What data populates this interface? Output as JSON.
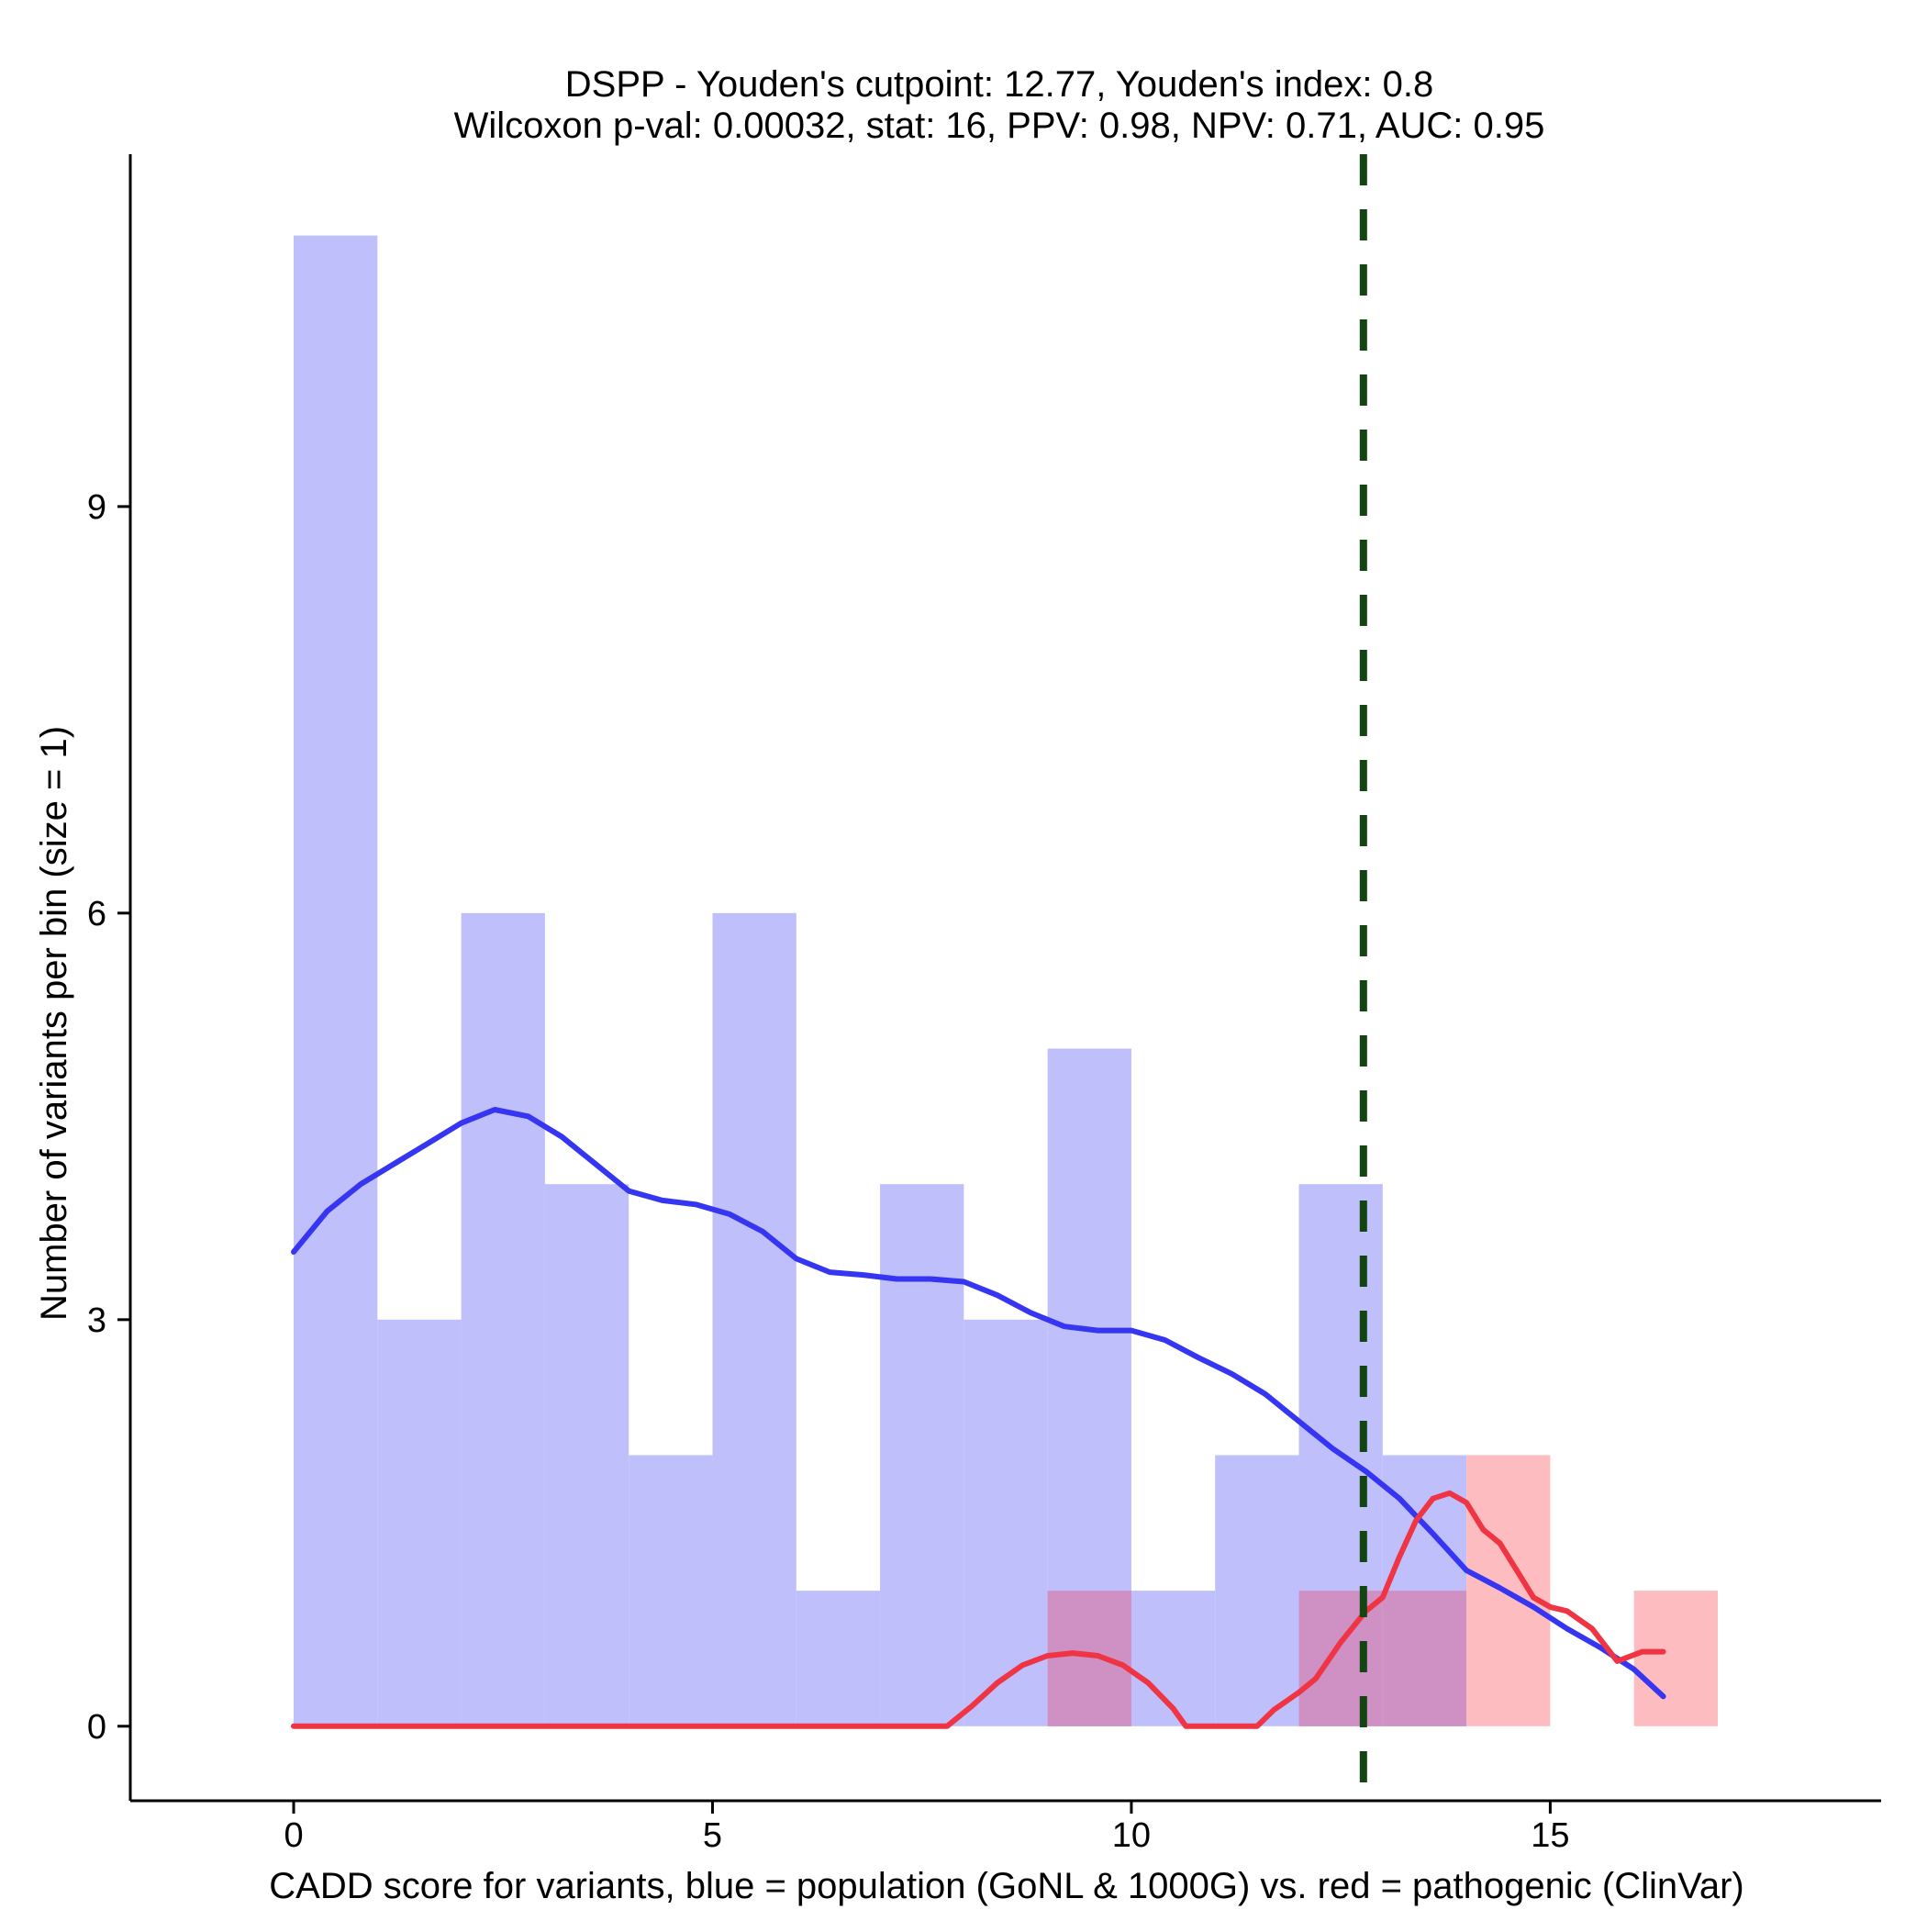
{
  "chart_data": {
    "type": "bar",
    "title_line1": "DSPP - Youden's cutpoint: 12.77, Youden's index: 0.8",
    "title_line2": "Wilcoxon p-val: 0.00032, stat: 16, PPV: 0.98, NPV: 0.71, AUC: 0.95",
    "xlabel": "CADD score for variants, blue = population (GoNL & 1000G) vs. red = pathogenic (ClinVar)",
    "ylabel": "Number of variants per bin (size = 1)",
    "xlim": [
      -1.95,
      18.95
    ],
    "ylim": [
      -0.55,
      11.6
    ],
    "x_ticks": [
      0,
      5,
      10,
      15
    ],
    "y_ticks": [
      0,
      3,
      6,
      9
    ],
    "bin_width": 1,
    "cutpoint": 12.77,
    "colors": {
      "population_bar": "#bfbffb",
      "pathogenic_bar": "#fdbcbf",
      "overlap_bar": "#cf90c4",
      "population_line": "#3535f2",
      "pathogenic_line": "#ef3444",
      "cutpoint_line": "#124512"
    },
    "series": [
      {
        "name": "population",
        "bin_starts": [
          0,
          1,
          2,
          3,
          4,
          5,
          6,
          7,
          8,
          9,
          10,
          11,
          12,
          13
        ],
        "values": [
          11,
          3,
          6,
          4,
          2,
          6,
          1,
          4,
          3,
          5,
          1,
          2,
          4,
          2
        ]
      },
      {
        "name": "pathogenic",
        "bin_starts": [
          9,
          12,
          13,
          14,
          16
        ],
        "values": [
          1,
          1,
          1,
          2,
          1
        ]
      }
    ],
    "density_population": {
      "x": [
        0,
        0.4,
        0.8,
        1.2,
        1.6,
        2.0,
        2.4,
        2.8,
        3.2,
        3.6,
        4.0,
        4.4,
        4.8,
        5.2,
        5.6,
        6.0,
        6.4,
        6.8,
        7.2,
        7.6,
        8.0,
        8.4,
        8.8,
        9.2,
        9.6,
        10.0,
        10.4,
        10.8,
        11.2,
        11.6,
        12.0,
        12.4,
        12.8,
        13.2,
        13.6,
        14.0,
        14.4,
        14.8,
        15.2,
        15.6,
        16.0,
        16.35
      ],
      "y": [
        3.5,
        3.8,
        4.0,
        4.15,
        4.3,
        4.45,
        4.55,
        4.5,
        4.35,
        4.15,
        3.95,
        3.88,
        3.85,
        3.78,
        3.65,
        3.45,
        3.35,
        3.33,
        3.3,
        3.3,
        3.28,
        3.18,
        3.05,
        2.95,
        2.92,
        2.92,
        2.85,
        2.72,
        2.6,
        2.45,
        2.25,
        2.05,
        1.88,
        1.68,
        1.42,
        1.15,
        1.02,
        0.88,
        0.72,
        0.58,
        0.42,
        0.22
      ]
    },
    "density_pathogenic": {
      "x": [
        0,
        7.8,
        8.1,
        8.4,
        8.7,
        9.0,
        9.3,
        9.6,
        9.9,
        10.2,
        10.5,
        10.65,
        11.5,
        11.7,
        12.0,
        12.2,
        12.5,
        12.8,
        13.0,
        13.2,
        13.4,
        13.6,
        13.8,
        14.0,
        14.2,
        14.4,
        14.6,
        14.8,
        15.0,
        15.2,
        15.5,
        15.8,
        16.1,
        16.35
      ],
      "y": [
        0,
        0,
        0.15,
        0.32,
        0.45,
        0.52,
        0.54,
        0.52,
        0.45,
        0.32,
        0.13,
        0,
        0,
        0.12,
        0.25,
        0.35,
        0.62,
        0.85,
        0.95,
        1.25,
        1.52,
        1.68,
        1.72,
        1.65,
        1.45,
        1.35,
        1.15,
        0.95,
        0.88,
        0.85,
        0.72,
        0.48,
        0.55,
        0.55
      ]
    }
  }
}
